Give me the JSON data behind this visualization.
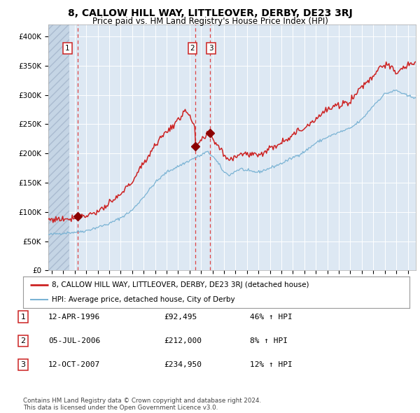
{
  "title": "8, CALLOW HILL WAY, LITTLEOVER, DERBY, DE23 3RJ",
  "subtitle": "Price paid vs. HM Land Registry's House Price Index (HPI)",
  "legend_label_red": "8, CALLOW HILL WAY, LITTLEOVER, DERBY, DE23 3RJ (detached house)",
  "legend_label_blue": "HPI: Average price, detached house, City of Derby",
  "footer": "Contains HM Land Registry data © Crown copyright and database right 2024.\nThis data is licensed under the Open Government Licence v3.0.",
  "yticks": [
    0,
    50000,
    100000,
    150000,
    200000,
    250000,
    300000,
    350000,
    400000
  ],
  "ytick_labels": [
    "£0",
    "£50K",
    "£100K",
    "£150K",
    "£200K",
    "£250K",
    "£300K",
    "£350K",
    "£400K"
  ],
  "ylim": [
    0,
    420000
  ],
  "xlim_start": 1993.7,
  "xlim_end": 2025.7,
  "hpi_color": "#7ab3d4",
  "price_color": "#cc2222",
  "marker_color": "#8b0000",
  "dashed_color": "#dd4444",
  "plot_bg_color": "#dde8f3",
  "hatch_end": 1995.5,
  "trans_dates": [
    1996.28,
    2006.5,
    2007.78
  ],
  "trans_prices": [
    92495,
    212000,
    234950
  ],
  "trans_labels": [
    "1",
    "2",
    "3"
  ],
  "table_rows": [
    {
      "label": "1",
      "date": "12-APR-1996",
      "price": "£92,495",
      "pct": "46% ↑ HPI"
    },
    {
      "label": "2",
      "date": "05-JUL-2006",
      "price": "£212,000",
      "pct": "8% ↑ HPI"
    },
    {
      "label": "3",
      "date": "12-OCT-2007",
      "price": "£234,950",
      "pct": "12% ↑ HPI"
    }
  ]
}
